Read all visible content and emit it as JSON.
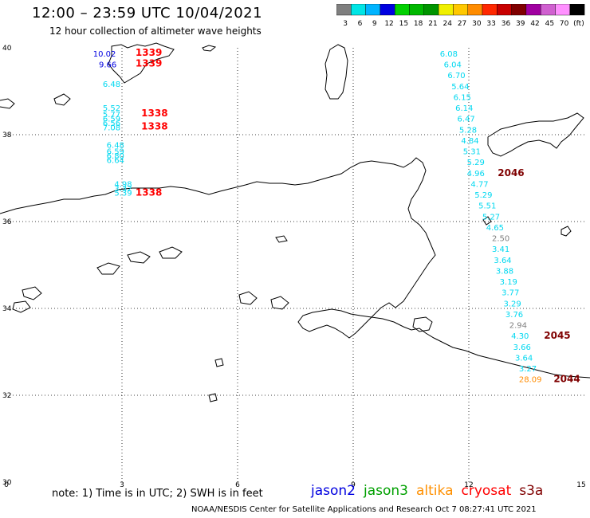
{
  "title": "12:00 – 23:59 UTC 10/04/2021",
  "subtitle": "12 hour collection of altimeter wave heights",
  "colorbar": {
    "colors": [
      "#7f7f7f",
      "#00e5e5",
      "#00b4ff",
      "#0000e0",
      "#00d000",
      "#00b800",
      "#009400",
      "#f0f000",
      "#ffc800",
      "#ff8c00",
      "#ff2800",
      "#c80000",
      "#7f0000",
      "#a000a0",
      "#d060d0",
      "#ff90ff",
      "#000000"
    ],
    "labels": [
      "3",
      "6",
      "9",
      "12",
      "15",
      "18",
      "21",
      "24",
      "27",
      "30",
      "33",
      "36",
      "39",
      "42",
      "45",
      "70",
      "(ft)"
    ]
  },
  "axes": {
    "x_ticks": [
      "0",
      "3",
      "6",
      "9",
      "12",
      "15"
    ],
    "y_ticks": [
      "40",
      "38",
      "36",
      "34",
      "32",
      "30"
    ]
  },
  "obs_labels": [
    {
      "text": "10.02",
      "lon": 2.25,
      "lat": 39.8,
      "color": "#0000e0"
    },
    {
      "text": "9.66",
      "lon": 2.4,
      "lat": 39.55,
      "color": "#0000e0"
    },
    {
      "text": "6.48",
      "lon": 2.5,
      "lat": 39.1,
      "color": "#00d8f0"
    },
    {
      "text": "5.52",
      "lon": 2.5,
      "lat": 38.55,
      "color": "#00d8f0"
    },
    {
      "text": "5.77",
      "lon": 2.5,
      "lat": 38.4,
      "color": "#00d8f0"
    },
    {
      "text": "6.59",
      "lon": 2.5,
      "lat": 38.3,
      "color": "#00d8f0"
    },
    {
      "text": "6.56",
      "lon": 2.5,
      "lat": 38.2,
      "color": "#00d8f0"
    },
    {
      "text": "7.08",
      "lon": 2.5,
      "lat": 38.1,
      "color": "#00d8f0"
    },
    {
      "text": "6.48",
      "lon": 2.6,
      "lat": 37.7,
      "color": "#00d8f0"
    },
    {
      "text": "6.59",
      "lon": 2.6,
      "lat": 37.55,
      "color": "#00d8f0"
    },
    {
      "text": "6.80",
      "lon": 2.6,
      "lat": 37.45,
      "color": "#00d8f0"
    },
    {
      "text": "6.64",
      "lon": 2.6,
      "lat": 37.35,
      "color": "#00d8f0"
    },
    {
      "text": "4.98",
      "lon": 2.8,
      "lat": 36.8,
      "color": "#00d8f0"
    },
    {
      "text": "3.32",
      "lon": 2.8,
      "lat": 36.7,
      "color": "#00d8f0"
    },
    {
      "text": "5.39",
      "lon": 2.8,
      "lat": 36.6,
      "color": "#00d8f0"
    },
    {
      "text": "6.08",
      "lon": 11.25,
      "lat": 39.8,
      "color": "#00d8f0"
    },
    {
      "text": "6.04",
      "lon": 11.35,
      "lat": 39.55,
      "color": "#00d8f0"
    },
    {
      "text": "6.70",
      "lon": 11.45,
      "lat": 39.3,
      "color": "#00d8f0"
    },
    {
      "text": "5.64",
      "lon": 11.55,
      "lat": 39.05,
      "color": "#00d8f0"
    },
    {
      "text": "6.15",
      "lon": 11.6,
      "lat": 38.8,
      "color": "#00d8f0"
    },
    {
      "text": "6.14",
      "lon": 11.65,
      "lat": 38.55,
      "color": "#00d8f0"
    },
    {
      "text": "6.47",
      "lon": 11.7,
      "lat": 38.3,
      "color": "#00d8f0"
    },
    {
      "text": "5.28",
      "lon": 11.75,
      "lat": 38.05,
      "color": "#00d8f0"
    },
    {
      "text": "4.84",
      "lon": 11.8,
      "lat": 37.8,
      "color": "#00d8f0"
    },
    {
      "text": "5.31",
      "lon": 11.85,
      "lat": 37.55,
      "color": "#00d8f0"
    },
    {
      "text": "5.29",
      "lon": 11.95,
      "lat": 37.3,
      "color": "#00d8f0"
    },
    {
      "text": "4.96",
      "lon": 11.95,
      "lat": 37.05,
      "color": "#00d8f0"
    },
    {
      "text": "4.77",
      "lon": 12.05,
      "lat": 36.8,
      "color": "#00d8f0"
    },
    {
      "text": "5.29",
      "lon": 12.15,
      "lat": 36.55,
      "color": "#00d8f0"
    },
    {
      "text": "5.51",
      "lon": 12.25,
      "lat": 36.3,
      "color": "#00d8f0"
    },
    {
      "text": "5.27",
      "lon": 12.35,
      "lat": 36.05,
      "color": "#00d8f0"
    },
    {
      "text": "4.65",
      "lon": 12.45,
      "lat": 35.8,
      "color": "#00d8f0"
    },
    {
      "text": "2.50",
      "lon": 12.6,
      "lat": 35.55,
      "color": "#7f7f7f"
    },
    {
      "text": "3.41",
      "lon": 12.6,
      "lat": 35.3,
      "color": "#00d8f0"
    },
    {
      "text": "3.64",
      "lon": 12.65,
      "lat": 35.05,
      "color": "#00d8f0"
    },
    {
      "text": "3.88",
      "lon": 12.7,
      "lat": 34.8,
      "color": "#00d8f0"
    },
    {
      "text": "3.19",
      "lon": 12.8,
      "lat": 34.55,
      "color": "#00d8f0"
    },
    {
      "text": "3.77",
      "lon": 12.85,
      "lat": 34.3,
      "color": "#00d8f0"
    },
    {
      "text": "3.29",
      "lon": 12.9,
      "lat": 34.05,
      "color": "#00d8f0"
    },
    {
      "text": "3.76",
      "lon": 12.95,
      "lat": 33.8,
      "color": "#00d8f0"
    },
    {
      "text": "2.94",
      "lon": 13.05,
      "lat": 33.55,
      "color": "#7f7f7f"
    },
    {
      "text": "4.30",
      "lon": 13.1,
      "lat": 33.3,
      "color": "#00d8f0"
    },
    {
      "text": "3.66",
      "lon": 13.15,
      "lat": 33.05,
      "color": "#00d8f0"
    },
    {
      "text": "3.64",
      "lon": 13.2,
      "lat": 32.8,
      "color": "#00d8f0"
    },
    {
      "text": "3.27",
      "lon": 13.3,
      "lat": 32.55,
      "color": "#00d8f0"
    },
    {
      "text": "28.09",
      "lon": 13.3,
      "lat": 32.3,
      "color": "#ff8c00"
    }
  ],
  "time_labels": [
    {
      "text": "1339",
      "lon": 3.35,
      "lat": 39.82,
      "color": "#ff0000"
    },
    {
      "text": "1339",
      "lon": 3.35,
      "lat": 39.57,
      "color": "#ff0000"
    },
    {
      "text": "1338",
      "lon": 3.5,
      "lat": 38.42,
      "color": "#ff0000"
    },
    {
      "text": "1338",
      "lon": 3.5,
      "lat": 38.12,
      "color": "#ff0000"
    },
    {
      "text": "1338",
      "lon": 3.35,
      "lat": 36.6,
      "color": "#ff0000"
    },
    {
      "text": "2046",
      "lon": 12.75,
      "lat": 37.05,
      "color": "#7f0000"
    },
    {
      "text": "2045",
      "lon": 13.95,
      "lat": 33.3,
      "color": "#7f0000"
    },
    {
      "text": "2044",
      "lon": 14.2,
      "lat": 32.3,
      "color": "#7f0000"
    }
  ],
  "note": "note:  1) Time is in UTC;  2) SWH is in feet",
  "satellites": [
    {
      "name": "jason2",
      "color": "#0000e0"
    },
    {
      "name": "jason3",
      "color": "#00a000"
    },
    {
      "name": "altika",
      "color": "#ff9000"
    },
    {
      "name": "cryosat",
      "color": "#ff0000"
    },
    {
      "name": "s3a",
      "color": "#800000"
    }
  ],
  "credit": "NOAA/NESDIS Center for Satellite Applications and Research    Oct  7 08:27:41 UTC 2021"
}
